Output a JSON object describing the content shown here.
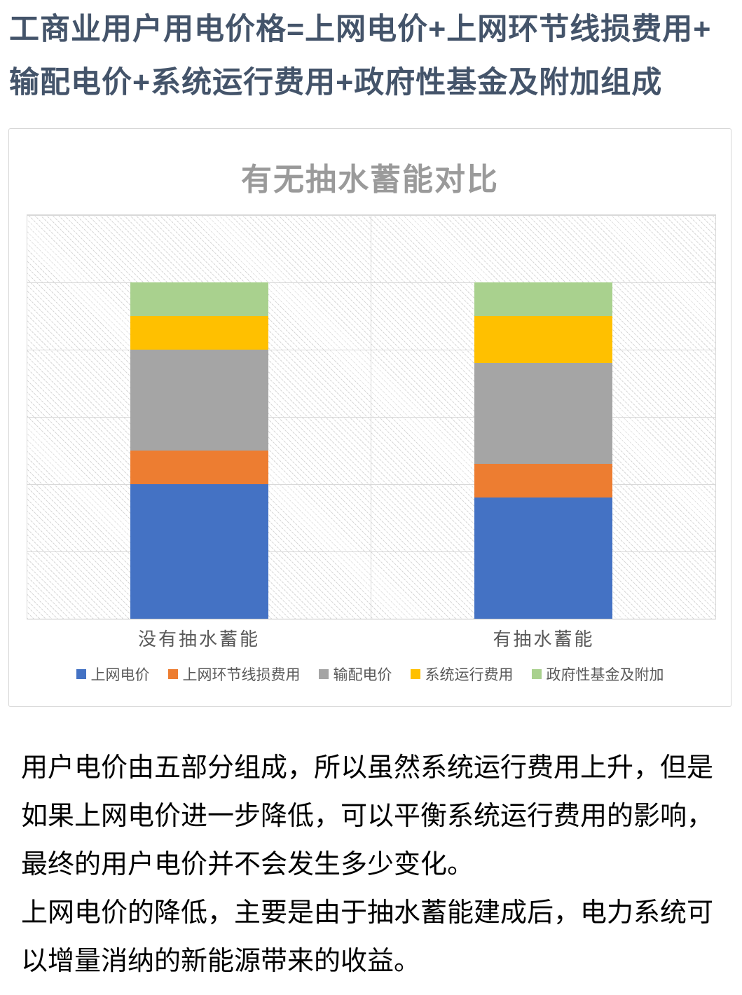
{
  "heading": {
    "lines": [
      "工商业用户用电价格=上网电价+上网环节线损费用+",
      "输配电价+系统运行费用+政府性基金及附加组成"
    ]
  },
  "chart_data": {
    "type": "bar",
    "stacked": true,
    "title": "有无抽水蓄能对比",
    "categories": [
      "没有抽水蓄能",
      "有抽水蓄能"
    ],
    "series": [
      {
        "name": "上网电价",
        "color": "#4472C4",
        "values": [
          2.0,
          1.8
        ]
      },
      {
        "name": "上网环节线损费用",
        "color": "#ED7D31",
        "values": [
          0.5,
          0.5
        ]
      },
      {
        "name": "输配电价",
        "color": "#A5A5A5",
        "values": [
          1.5,
          1.5
        ]
      },
      {
        "name": "系统运行费用",
        "color": "#FFC000",
        "values": [
          0.5,
          0.7
        ]
      },
      {
        "name": "政府性基金及附加",
        "color": "#A9D18E",
        "values": [
          0.5,
          0.5
        ]
      }
    ],
    "bar_totals": [
      5.0,
      5.0
    ],
    "ylim": [
      0,
      6
    ],
    "gridline_interval": 1,
    "value_axis_labels_visible": false,
    "grid": true,
    "plot_background": "diagonal-hatch",
    "legend_position": "bottom"
  },
  "body": {
    "paragraphs": [
      {
        "text": "用户电价由五部分组成，所以虽然系统运行费用上升，但是如果上网电价进一步降低，可以平衡系统运行费用的影响，最终的用户电价并不会发生多少变化。",
        "lines": [
          "用户电价由五部分组成，所以虽然系统运行费用上升，但是",
          "如果上网电价进一步降低，可以平衡系统运行费用的影响，",
          "最终的用户电价并不会发生多少变化。"
        ]
      },
      {
        "text": "上网电价的降低，主要是由于抽水蓄能建成后，电力系统可以增量消纳的新能源带来的收益。",
        "lines": [
          "上网电价的降低，主要是由于抽水蓄能建成后，电力系统可",
          "以增量消纳的新能源带来的收益。"
        ]
      }
    ]
  }
}
